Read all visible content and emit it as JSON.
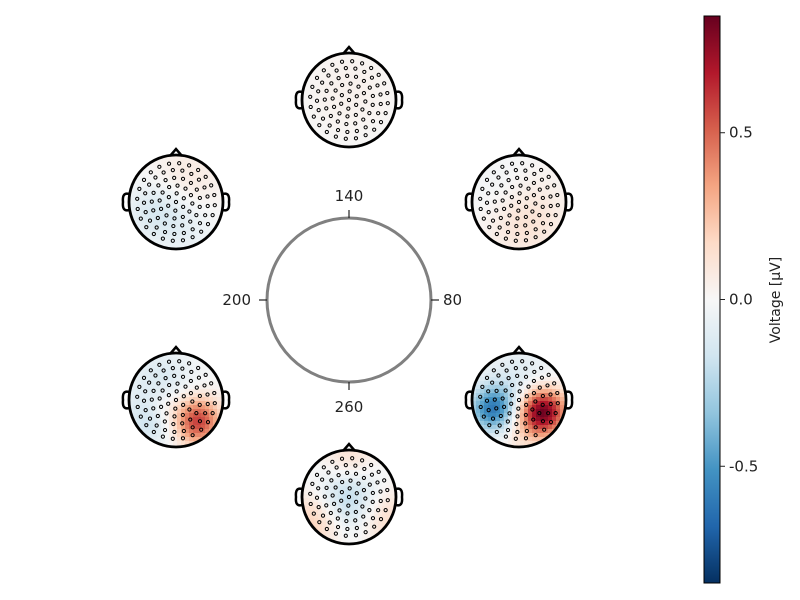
{
  "chart_data": {
    "type": "heatmap",
    "description_type": "circular arrangement of EEG scalp topomaps around a time dial",
    "dial": {
      "ticks": [
        {
          "label": "140",
          "position": "top"
        },
        {
          "label": "80",
          "position": "right"
        },
        {
          "label": "260",
          "position": "bottom"
        },
        {
          "label": "200",
          "position": "left"
        }
      ]
    },
    "topomaps": [
      {
        "slot": "top",
        "min": -0.05,
        "max": 0.06
      },
      {
        "slot": "upper-right",
        "min": -0.08,
        "max": 0.12
      },
      {
        "slot": "lower-right",
        "min": -0.6,
        "max": 0.85
      },
      {
        "slot": "bottom",
        "min": -0.35,
        "max": 0.3
      },
      {
        "slot": "lower-left",
        "min": -0.3,
        "max": 0.7
      },
      {
        "slot": "upper-left",
        "min": -0.2,
        "max": 0.1
      }
    ],
    "colorbar": {
      "label": "Voltage [μV]",
      "ticks": [
        {
          "value": 0.5,
          "label": "0.5"
        },
        {
          "value": 0.0,
          "label": "0.0"
        },
        {
          "value": -0.5,
          "label": "-0.5"
        }
      ],
      "range": [
        -0.85,
        0.85
      ],
      "colormap": "RdBu_r",
      "colors": [
        "#053061",
        "#2166ac",
        "#4393c3",
        "#92c5de",
        "#d1e5f0",
        "#f7f7f7",
        "#fddbc7",
        "#f4a582",
        "#d6604d",
        "#b2182b",
        "#67001f"
      ]
    }
  }
}
